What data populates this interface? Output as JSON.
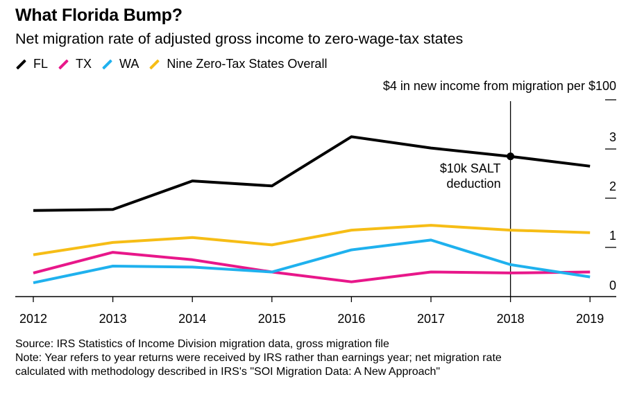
{
  "header": {
    "title": "What Florida Bump?",
    "subtitle": "Net migration rate of adjusted gross income to zero-wage-tax states"
  },
  "legend": [
    {
      "label": "FL",
      "color": "#000000"
    },
    {
      "label": "TX",
      "color": "#e8178a"
    },
    {
      "label": "WA",
      "color": "#1fb1ee"
    },
    {
      "label": "Nine Zero-Tax States Overall",
      "color": "#f6bd16"
    }
  ],
  "chart_data": {
    "type": "line",
    "x": [
      "2012",
      "2013",
      "2014",
      "2015",
      "2016",
      "2017",
      "2018",
      "2019"
    ],
    "series": [
      {
        "name": "FL",
        "color": "#000000",
        "values": [
          1.75,
          1.77,
          2.35,
          2.25,
          3.25,
          3.02,
          2.85,
          2.65
        ]
      },
      {
        "name": "TX",
        "color": "#e8178a",
        "values": [
          0.48,
          0.9,
          0.75,
          0.5,
          0.3,
          0.5,
          0.48,
          0.5
        ]
      },
      {
        "name": "WA",
        "color": "#1fb1ee",
        "values": [
          0.28,
          0.62,
          0.6,
          0.5,
          0.95,
          1.15,
          0.65,
          0.4
        ]
      },
      {
        "name": "Nine Zero-Tax States Overall",
        "color": "#f6bd16",
        "values": [
          0.85,
          1.1,
          1.2,
          1.05,
          1.35,
          1.45,
          1.35,
          1.3
        ]
      }
    ],
    "yticks": [
      {
        "value": 4,
        "label": "$4 in new income from migration per $100"
      },
      {
        "value": 3,
        "label": "3"
      },
      {
        "value": 2,
        "label": "2"
      },
      {
        "value": 1,
        "label": "1"
      },
      {
        "value": 0,
        "label": "0"
      }
    ],
    "ylim": [
      0,
      4
    ],
    "annotation": {
      "x": "2018",
      "value": 2.85,
      "text_line1": "$10k SALT",
      "text_line2": "deduction"
    },
    "grid": false
  },
  "notes": {
    "source": "Source: IRS Statistics of Income Division migration data, gross migration file",
    "note_line1": "Note: Year refers to year returns were received by IRS rather than earnings year; net migration rate",
    "note_line2": "calculated with methodology described in IRS's \"SOI Migration Data: A New Approach\""
  }
}
